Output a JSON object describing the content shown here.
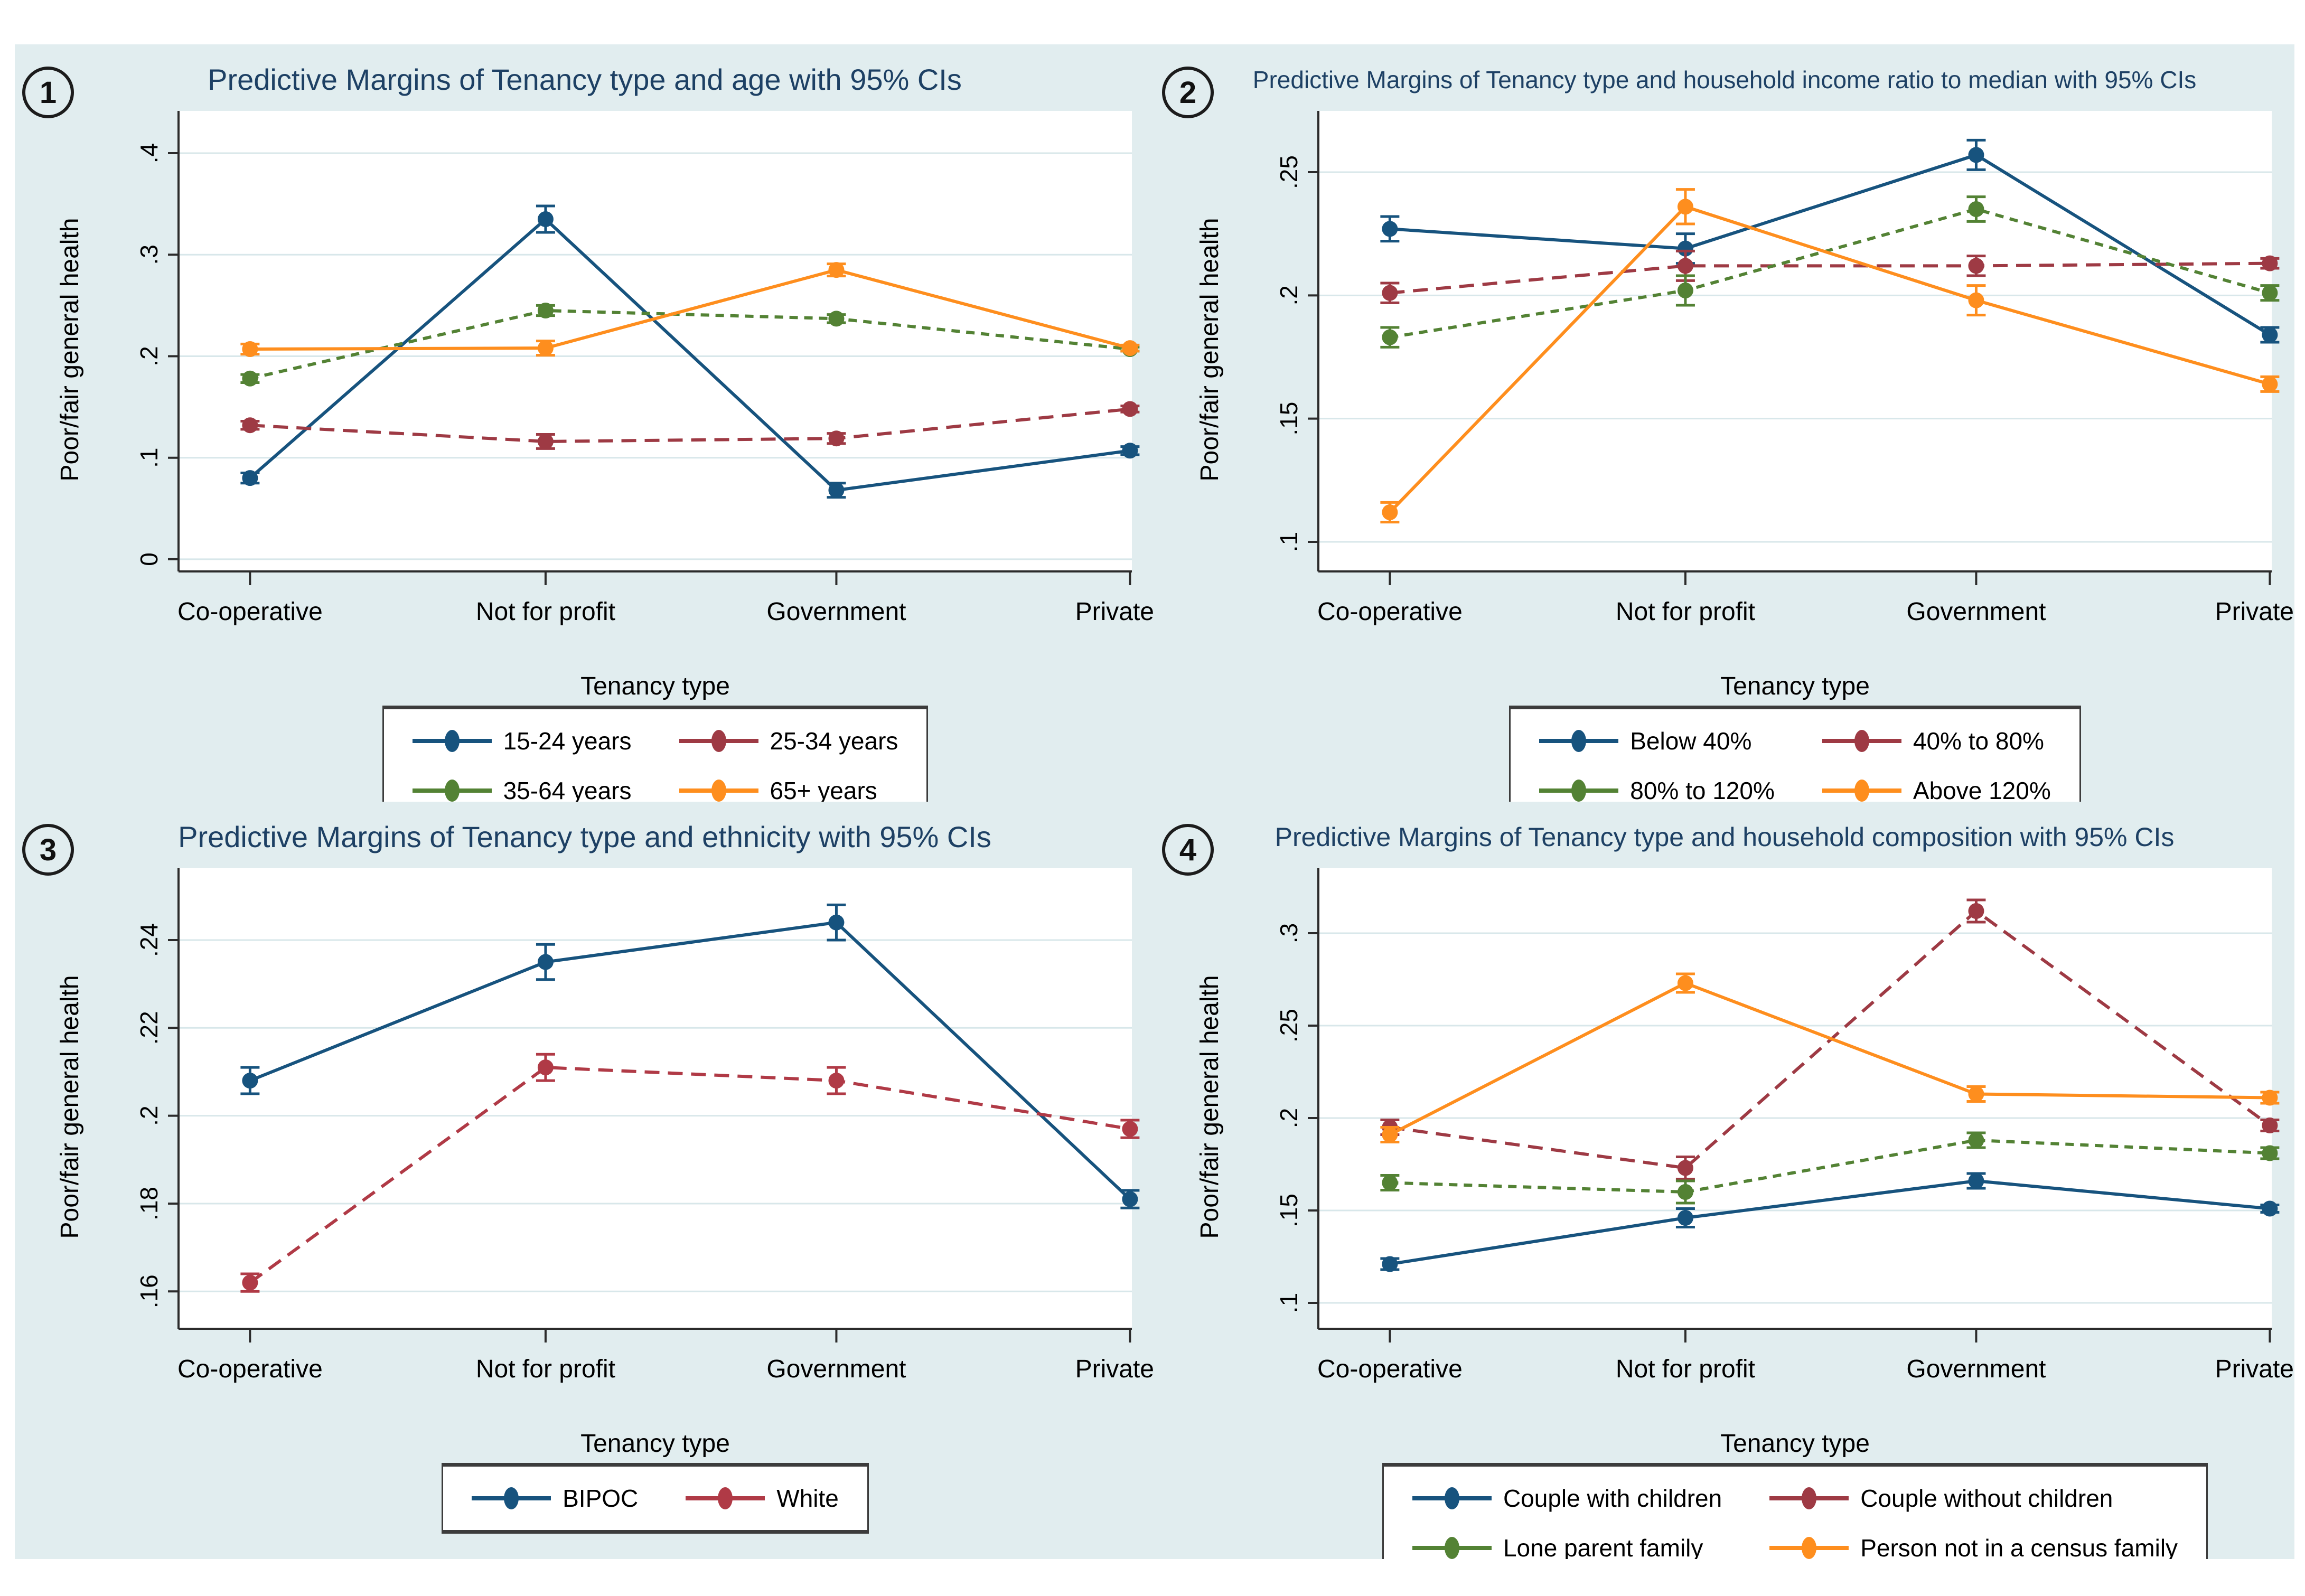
{
  "figure": {
    "x_axis_title": "Tenancy type",
    "y_axis_title": "Poor/fair general health",
    "background_color": "#e1edef",
    "plot_background": "#ffffff",
    "grid_color": "#d8e7ea",
    "title_color": "#1d4064",
    "axis_color": "#2b2b2b"
  },
  "chart_data": [
    {
      "type": "line",
      "badge": "1",
      "title": "Predictive Margins of Tenancy type and age with 95% CIs",
      "ylabel": "Poor/fair general health",
      "xlabel": "Tenancy type",
      "categories": [
        "Co-operative",
        "Not for profit",
        "Government",
        "Private"
      ],
      "yticks": [
        {
          "v": 0,
          "label": "0"
        },
        {
          "v": 0.1,
          "label": ".1"
        },
        {
          "v": 0.2,
          "label": ".2"
        },
        {
          "v": 0.3,
          "label": ".3"
        },
        {
          "v": 0.4,
          "label": ".4"
        }
      ],
      "ylim": [
        -0.012,
        0.425
      ],
      "legend_position": "bottom",
      "grid": true,
      "series": [
        {
          "name": "15-24 years",
          "color": "#17537e",
          "dash": "",
          "values": [
            0.08,
            0.335,
            0.068,
            0.107
          ],
          "ci_half": [
            0.005,
            0.013,
            0.007,
            0.004
          ]
        },
        {
          "name": "25-34 years",
          "color": "#9e3a44",
          "dash": "28 16",
          "values": [
            0.132,
            0.116,
            0.119,
            0.148
          ],
          "ci_half": [
            0.004,
            0.007,
            0.005,
            0.003
          ]
        },
        {
          "name": "35-64 years",
          "color": "#538234",
          "dash": "16 12",
          "values": [
            0.178,
            0.245,
            0.237,
            0.207
          ],
          "ci_half": [
            0.004,
            0.005,
            0.004,
            0.002
          ]
        },
        {
          "name": "65+ years",
          "color": "#fe8e1e",
          "dash": "",
          "values": [
            0.207,
            0.208,
            0.285,
            0.208
          ],
          "ci_half": [
            0.005,
            0.007,
            0.006,
            0.003
          ]
        }
      ]
    },
    {
      "type": "line",
      "badge": "2",
      "title": "Predictive Margins of Tenancy type and household income ratio to median with 95% CIs",
      "ylabel": "Poor/fair general health",
      "xlabel": "Tenancy type",
      "categories": [
        "Co-operative",
        "Not for profit",
        "Government",
        "Private"
      ],
      "yticks": [
        {
          "v": 0.1,
          "label": ".1"
        },
        {
          "v": 0.15,
          "label": ".15"
        },
        {
          "v": 0.2,
          "label": ".2"
        },
        {
          "v": 0.25,
          "label": ".25"
        }
      ],
      "ylim": [
        0.088,
        0.268
      ],
      "legend_position": "bottom",
      "grid": true,
      "series": [
        {
          "name": "Below 40%",
          "color": "#17537e",
          "dash": "",
          "values": [
            0.227,
            0.219,
            0.257,
            0.184
          ],
          "ci_half": [
            0.005,
            0.006,
            0.006,
            0.003
          ]
        },
        {
          "name": "40% to 80%",
          "color": "#9e3a44",
          "dash": "28 16",
          "values": [
            0.201,
            0.212,
            0.212,
            0.213
          ],
          "ci_half": [
            0.004,
            0.006,
            0.004,
            0.002
          ]
        },
        {
          "name": "80% to 120%",
          "color": "#538234",
          "dash": "16 12",
          "values": [
            0.183,
            0.202,
            0.235,
            0.201
          ],
          "ci_half": [
            0.004,
            0.006,
            0.005,
            0.003
          ]
        },
        {
          "name": "Above 120%",
          "color": "#fe8e1e",
          "dash": "",
          "values": [
            0.112,
            0.236,
            0.198,
            0.164
          ],
          "ci_half": [
            0.004,
            0.007,
            0.006,
            0.003
          ]
        }
      ]
    },
    {
      "type": "line",
      "badge": "3",
      "title": "Predictive Margins of Tenancy type and ethnicity with 95% CIs",
      "ylabel": "Poor/fair general health",
      "xlabel": "Tenancy type",
      "categories": [
        "Co-operative",
        "Not for profit",
        "Government",
        "Private"
      ],
      "yticks": [
        {
          "v": 0.16,
          "label": ".16"
        },
        {
          "v": 0.18,
          "label": ".18"
        },
        {
          "v": 0.2,
          "label": ".2"
        },
        {
          "v": 0.22,
          "label": ".22"
        },
        {
          "v": 0.24,
          "label": ".24"
        }
      ],
      "ylim": [
        0.1515,
        0.2525
      ],
      "legend_position": "bottom",
      "grid": true,
      "series": [
        {
          "name": "BIPOC",
          "color": "#17537e",
          "dash": "",
          "values": [
            0.208,
            0.235,
            0.244,
            0.181
          ],
          "ci_half": [
            0.003,
            0.004,
            0.004,
            0.002
          ]
        },
        {
          "name": "White",
          "color": "#b03a46",
          "dash": "28 16",
          "values": [
            0.162,
            0.211,
            0.208,
            0.197
          ],
          "ci_half": [
            0.002,
            0.003,
            0.003,
            0.002
          ]
        }
      ]
    },
    {
      "type": "line",
      "badge": "4",
      "title": "Predictive Margins of Tenancy type and household composition with 95% CIs",
      "ylabel": "Poor/fair general health",
      "xlabel": "Tenancy type",
      "categories": [
        "Co-operative",
        "Not for profit",
        "Government",
        "Private"
      ],
      "yticks": [
        {
          "v": 0.1,
          "label": ".1"
        },
        {
          "v": 0.15,
          "label": ".15"
        },
        {
          "v": 0.2,
          "label": ".2"
        },
        {
          "v": 0.25,
          "label": ".25"
        },
        {
          "v": 0.3,
          "label": ".3"
        }
      ],
      "ylim": [
        0.086,
        0.326
      ],
      "legend_position": "bottom",
      "grid": true,
      "series": [
        {
          "name": "Couple with children",
          "color": "#17537e",
          "dash": "",
          "values": [
            0.121,
            0.146,
            0.166,
            0.151
          ],
          "ci_half": [
            0.003,
            0.005,
            0.004,
            0.002
          ]
        },
        {
          "name": "Couple without children",
          "color": "#9e3a44",
          "dash": "28 16",
          "values": [
            0.195,
            0.173,
            0.312,
            0.196
          ],
          "ci_half": [
            0.004,
            0.006,
            0.006,
            0.003
          ]
        },
        {
          "name": "Lone parent family",
          "color": "#538234",
          "dash": "16 12",
          "values": [
            0.165,
            0.16,
            0.188,
            0.181
          ],
          "ci_half": [
            0.004,
            0.006,
            0.004,
            0.003
          ]
        },
        {
          "name": "Person not in a census family",
          "color": "#fe8e1e",
          "dash": "",
          "values": [
            0.191,
            0.273,
            0.213,
            0.211
          ],
          "ci_half": [
            0.004,
            0.005,
            0.004,
            0.003
          ]
        }
      ]
    }
  ]
}
